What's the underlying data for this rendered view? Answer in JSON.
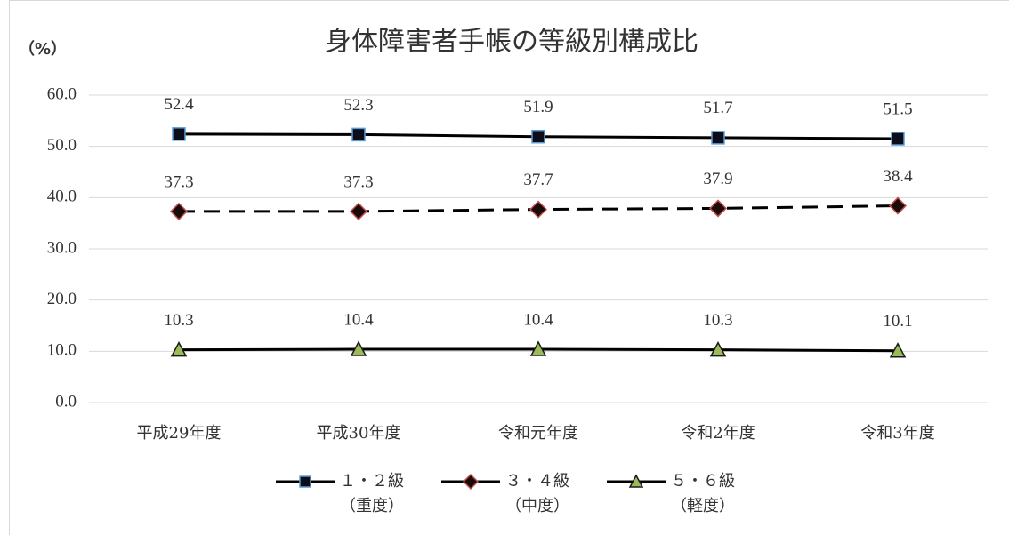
{
  "chart_data": {
    "type": "line",
    "title": "身体障害者手帳の等級別構成比",
    "y_axis_label": "（%）",
    "categories": [
      "平成29年度",
      "平成30年度",
      "令和元年度",
      "令和2年度",
      "令和3年度"
    ],
    "series": [
      {
        "name": "１・２級\n（重度）",
        "color": "#000000",
        "dash": false,
        "marker": "square",
        "marker_fill": "#0d0d1a",
        "marker_edge": "#5b9bd5",
        "values": [
          52.4,
          52.3,
          51.9,
          51.7,
          51.5
        ]
      },
      {
        "name": "３・４級\n（中度）",
        "color": "#000000",
        "dash": true,
        "marker": "diamond",
        "marker_fill": "#1a0a0a",
        "marker_edge": "#c0504d",
        "values": [
          37.3,
          37.3,
          37.7,
          37.9,
          38.4
        ]
      },
      {
        "name": "５・６級\n（軽度）",
        "color": "#000000",
        "dash": false,
        "marker": "triangle",
        "marker_fill": "#9bbb59",
        "marker_edge": "#1a1a1a",
        "values": [
          10.3,
          10.4,
          10.4,
          10.3,
          10.1
        ]
      }
    ],
    "ylim": [
      0,
      60
    ],
    "yticks": [
      {
        "value": 0,
        "label": "0.0"
      },
      {
        "value": 10,
        "label": "10.0"
      },
      {
        "value": 20,
        "label": "20.0"
      },
      {
        "value": 30,
        "label": "30.0"
      },
      {
        "value": 40,
        "label": "40.0"
      },
      {
        "value": 50,
        "label": "50.0"
      },
      {
        "value": 60,
        "label": "60.0"
      }
    ],
    "grid": true,
    "legend": "bottom"
  }
}
